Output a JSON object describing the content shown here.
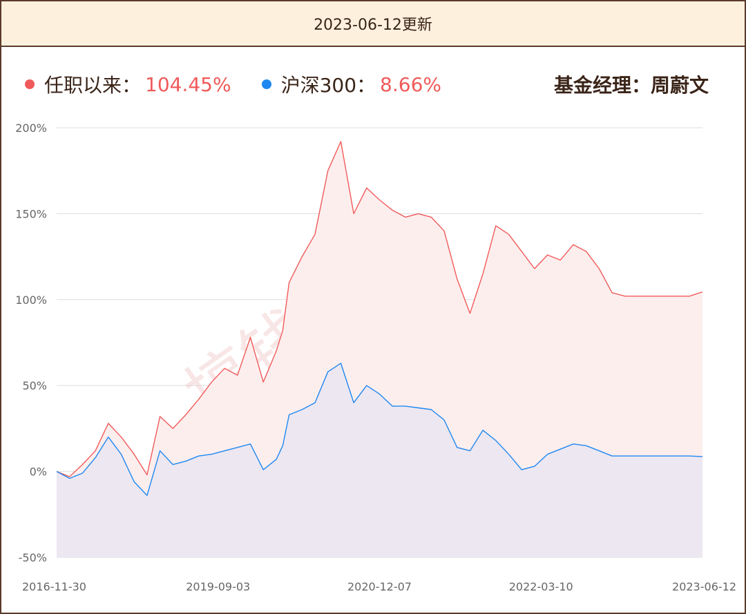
{
  "header": {
    "title": "2023-06-12更新"
  },
  "legend": {
    "series1_label": "任职以来：",
    "series1_value": "104.45%",
    "series2_label": "沪深300：",
    "series2_value": "8.66%",
    "manager": "基金经理：周蔚文"
  },
  "watermark": "搞钱基地",
  "colors": {
    "fund": "#f05a5a",
    "fund_fill": "#fdeeee",
    "index": "#1e88f0",
    "index_fill": "#ece7f1",
    "value_text": "#f05a5a",
    "grid": "#dddddd"
  },
  "chart_data": {
    "type": "area",
    "x_ticks": [
      "2016-11-30",
      "2019-09-03",
      "2020-12-07",
      "2022-03-10",
      "2023-06-12"
    ],
    "y_ticks": [
      "200%",
      "150%",
      "100%",
      "50%",
      "0%",
      "-50%"
    ],
    "ylim": [
      -50,
      200
    ],
    "xlim": [
      0,
      100
    ],
    "series": [
      {
        "name": "任职以来",
        "x": [
          0,
          2,
          4,
          6,
          8,
          10,
          12,
          14,
          16,
          18,
          20,
          22,
          24,
          26,
          28,
          30,
          32,
          34,
          35,
          36,
          38,
          40,
          42,
          44,
          46,
          48,
          50,
          52,
          54,
          56,
          58,
          60,
          62,
          64,
          66,
          68,
          70,
          72,
          74,
          76,
          78,
          80,
          82,
          84,
          86,
          88,
          90,
          92,
          94,
          96,
          98,
          100
        ],
        "values": [
          0,
          -3,
          4,
          12,
          28,
          20,
          10,
          -2,
          32,
          25,
          33,
          42,
          52,
          60,
          56,
          78,
          52,
          70,
          82,
          110,
          125,
          138,
          175,
          192,
          150,
          165,
          158,
          152,
          148,
          150,
          148,
          140,
          112,
          92,
          115,
          143,
          138,
          128,
          118,
          126,
          123,
          132,
          128,
          118,
          104,
          102,
          102,
          102,
          102,
          102,
          102,
          104.45
        ]
      },
      {
        "name": "沪深300",
        "x": [
          0,
          2,
          4,
          6,
          8,
          10,
          12,
          14,
          16,
          18,
          20,
          22,
          24,
          26,
          28,
          30,
          32,
          34,
          35,
          36,
          38,
          40,
          42,
          44,
          46,
          48,
          50,
          52,
          54,
          56,
          58,
          60,
          62,
          64,
          66,
          68,
          70,
          72,
          74,
          76,
          78,
          80,
          82,
          84,
          86,
          88,
          90,
          92,
          94,
          96,
          98,
          100
        ],
        "values": [
          0,
          -4,
          -1,
          8,
          20,
          10,
          -6,
          -14,
          12,
          4,
          6,
          9,
          10,
          12,
          14,
          16,
          1,
          7,
          15,
          33,
          36,
          40,
          58,
          63,
          40,
          50,
          45,
          38,
          38,
          37,
          36,
          30,
          14,
          12,
          24,
          18,
          10,
          1,
          3,
          10,
          13,
          16,
          15,
          12,
          9,
          9,
          9,
          9,
          9,
          9,
          9,
          8.66
        ]
      }
    ]
  }
}
